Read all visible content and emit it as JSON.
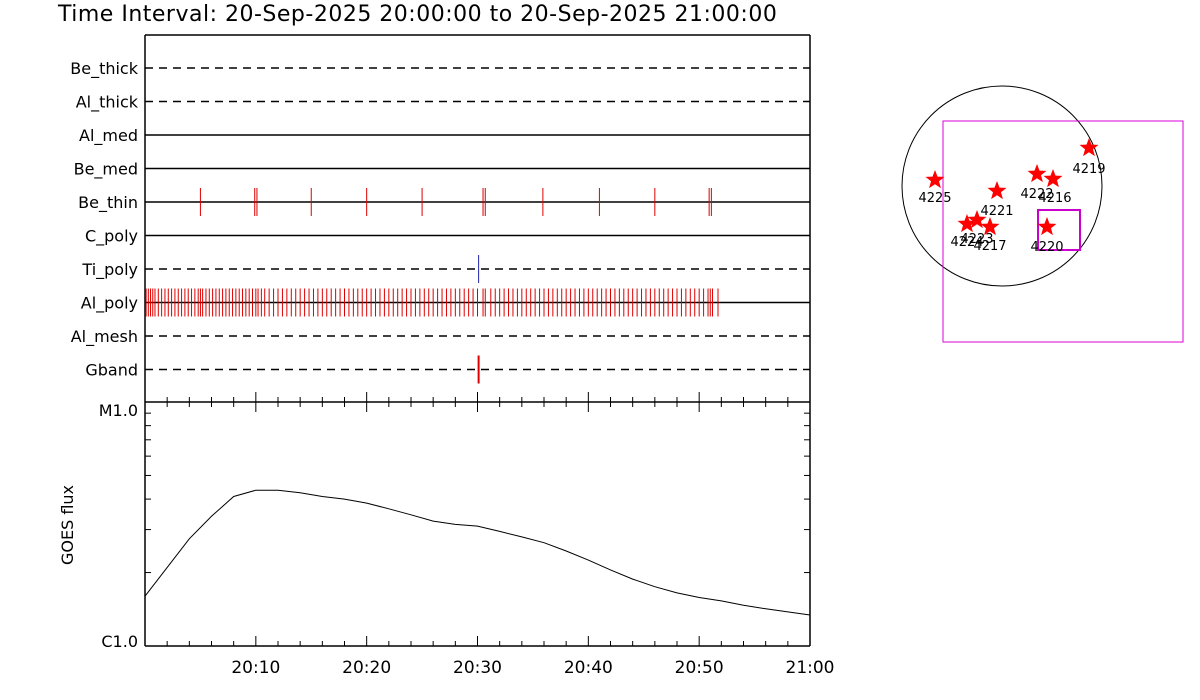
{
  "title": "Time Interval: 20-Sep-2025 20:00:00 to 20-Sep-2025 21:00:00",
  "chart_data": [
    {
      "type": "event-timeline",
      "time_range_min": [
        0,
        60
      ],
      "channels": [
        {
          "name": "Be_thick",
          "style": "dashed",
          "events_min": []
        },
        {
          "name": "Al_thick",
          "style": "dashed",
          "events_min": []
        },
        {
          "name": "Al_med",
          "style": "solid",
          "events_min": []
        },
        {
          "name": "Be_med",
          "style": "solid",
          "events_min": []
        },
        {
          "name": "Be_thin",
          "style": "solid",
          "color": "#dd0000",
          "events_min": [
            5,
            9.9,
            10.1,
            15,
            20,
            25,
            30.5,
            30.7,
            35.9,
            41,
            46,
            50.9,
            51.1
          ]
        },
        {
          "name": "C_poly",
          "style": "solid",
          "events_min": []
        },
        {
          "name": "Ti_poly",
          "style": "dashed",
          "color": "#2222aa",
          "events_min": [
            30.1
          ]
        },
        {
          "name": "Al_poly",
          "style": "solid",
          "color": "#dd0000",
          "events_min": [
            0.1,
            0.3,
            0.5,
            0.7,
            0.9,
            1.2,
            1.5,
            1.8,
            2.1,
            2.4,
            2.7,
            3.0,
            3.3,
            3.6,
            3.9,
            4.2,
            4.5,
            4.8,
            5.0,
            5.2,
            5.5,
            5.8,
            6.1,
            6.4,
            6.7,
            7.0,
            7.3,
            7.6,
            7.9,
            8.2,
            8.5,
            8.8,
            9.1,
            9.4,
            9.7,
            10.0,
            10.2,
            10.5,
            10.8,
            11.2,
            11.6,
            12.0,
            12.4,
            12.8,
            13.2,
            13.6,
            14.0,
            14.4,
            14.8,
            15.2,
            15.6,
            16.0,
            16.4,
            16.8,
            17.2,
            17.6,
            18.0,
            18.4,
            18.8,
            19.2,
            19.6,
            20.0,
            20.4,
            20.8,
            21.2,
            21.6,
            22.0,
            22.4,
            22.8,
            23.2,
            23.6,
            24.0,
            24.4,
            24.8,
            25.2,
            25.6,
            26.0,
            26.4,
            26.8,
            27.2,
            27.6,
            28.0,
            28.4,
            28.8,
            29.2,
            29.6,
            30.0,
            30.5,
            30.7,
            31.2,
            31.6,
            32.0,
            32.4,
            32.8,
            33.2,
            33.6,
            34.0,
            34.4,
            34.8,
            35.2,
            35.6,
            36.0,
            36.4,
            36.8,
            37.2,
            37.6,
            38.0,
            38.4,
            38.8,
            39.2,
            39.6,
            40.0,
            40.4,
            40.8,
            41.2,
            41.6,
            42.0,
            42.4,
            42.8,
            43.2,
            43.6,
            44.0,
            44.4,
            44.8,
            45.2,
            45.6,
            46.0,
            46.4,
            46.8,
            47.2,
            47.6,
            48.0,
            48.4,
            48.8,
            49.2,
            49.6,
            50.0,
            50.4,
            50.8,
            51.0,
            51.2,
            51.7
          ]
        },
        {
          "name": "Al_mesh",
          "style": "dashed",
          "events_min": []
        },
        {
          "name": "Gband",
          "style": "dashed",
          "color": "#dd0000",
          "events_min": [
            30.1
          ]
        }
      ]
    },
    {
      "type": "line",
      "ylabel": "GOES flux",
      "y_tick_labels": [
        "M1.0",
        "C1.0"
      ],
      "y_scale": "log",
      "ylim": [
        1e-06,
        1e-05
      ],
      "x_tick_labels": [
        "20:10",
        "20:20",
        "20:30",
        "20:40",
        "20:50",
        "21:00"
      ],
      "x_ticks_min": [
        10,
        20,
        30,
        40,
        50,
        60
      ],
      "x": [
        0,
        2,
        4,
        6,
        8,
        10,
        12,
        14,
        16,
        18,
        20,
        22,
        24,
        26,
        28,
        30,
        32,
        34,
        36,
        38,
        40,
        42,
        44,
        46,
        48,
        50,
        52,
        54,
        56,
        58,
        60
      ],
      "y": [
        1.6e-06,
        2.1e-06,
        2.75e-06,
        3.4e-06,
        4.1e-06,
        4.35e-06,
        4.35e-06,
        4.25e-06,
        4.1e-06,
        4e-06,
        3.85e-06,
        3.65e-06,
        3.45e-06,
        3.25e-06,
        3.15e-06,
        3.1e-06,
        2.95e-06,
        2.8e-06,
        2.65e-06,
        2.45e-06,
        2.25e-06,
        2.05e-06,
        1.88e-06,
        1.75e-06,
        1.65e-06,
        1.58e-06,
        1.53e-06,
        1.47e-06,
        1.42e-06,
        1.38e-06,
        1.34e-06
      ]
    }
  ],
  "sun_map": {
    "regions": [
      {
        "label": "4225",
        "color": "#ff0000"
      },
      {
        "label": "4221",
        "color": "#ff0000"
      },
      {
        "label": "4222",
        "color": "#ff0000"
      },
      {
        "label": "4216",
        "color": "#ff0000"
      },
      {
        "label": "4219",
        "color": "#ff0000"
      },
      {
        "label": "4224",
        "color": "#ff0000"
      },
      {
        "label": "4223",
        "color": "#ff0000"
      },
      {
        "label": "4217",
        "color": "#ff0000"
      },
      {
        "label": "4220",
        "color": "#ff0000"
      }
    ],
    "fov_color": "#dd00dd",
    "box_color": "#cc00cc"
  }
}
